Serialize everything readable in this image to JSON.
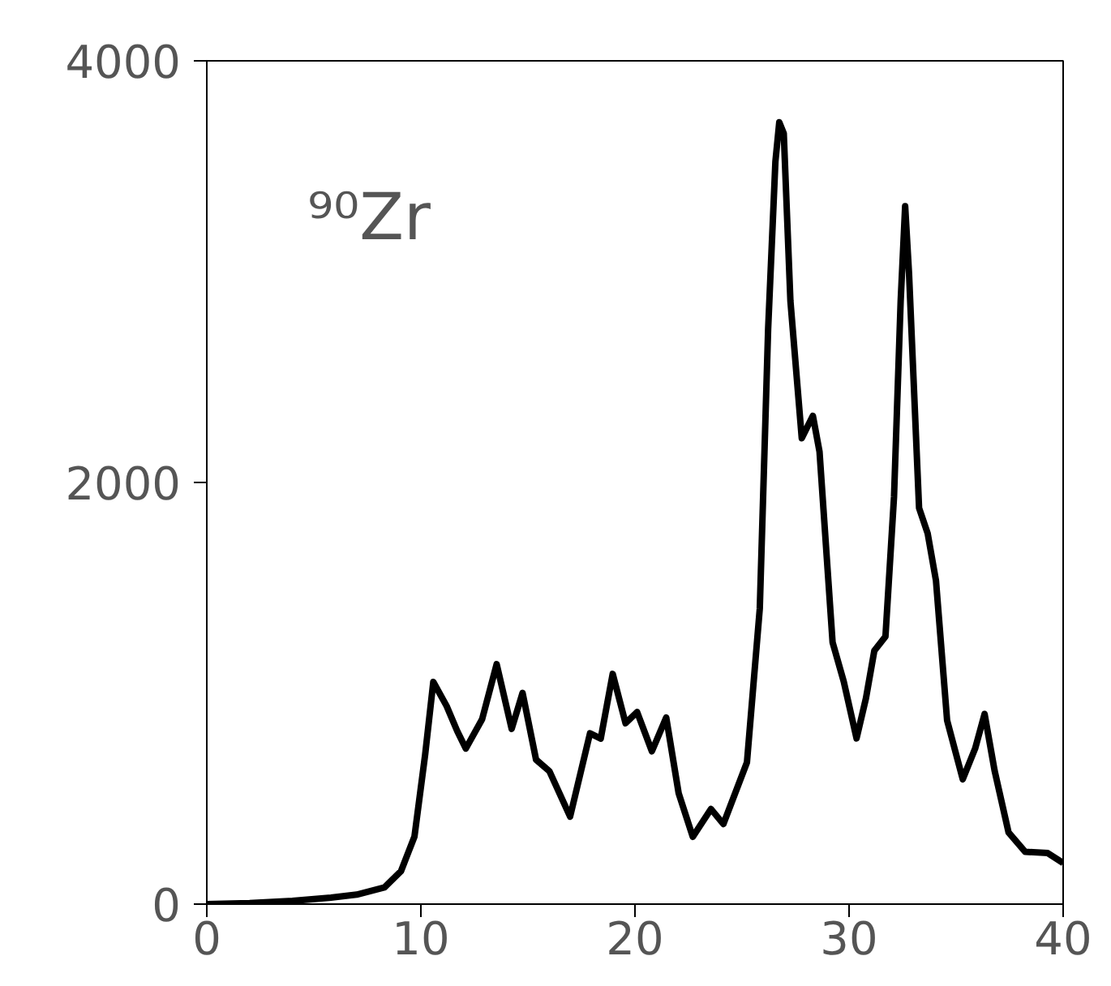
{
  "chart_data": {
    "type": "line",
    "annotations": [
      "⁹⁰Zr"
    ],
    "x": [
      0,
      2,
      4,
      5.8,
      7,
      8.3,
      9.07,
      9.7,
      10.2,
      10.58,
      11.2,
      11.7,
      12.1,
      12.86,
      13.54,
      14.24,
      14.75,
      15.38,
      16.0,
      16.97,
      17.9,
      18.4,
      18.96,
      19.56,
      20.1,
      20.79,
      21.46,
      22.04,
      22.7,
      23.55,
      24.13,
      25.23,
      25.83,
      26.22,
      26.56,
      26.74,
      26.95,
      27.26,
      27.79,
      28.31,
      28.62,
      29.23,
      29.75,
      30.35,
      30.79,
      31.18,
      31.7,
      32.1,
      32.41,
      32.62,
      32.8,
      33.27,
      33.67,
      34.06,
      34.58,
      35.31,
      35.89,
      36.33,
      36.8,
      37.45,
      38.23,
      39.28,
      40
    ],
    "series": [
      {
        "color": "#000000",
        "values": [
          0,
          5,
          15,
          31,
          45,
          79,
          156,
          320,
          710,
          1054,
          940,
          820,
          738,
          877,
          1138,
          831,
          1002,
          685,
          631,
          415,
          810,
          785,
          1092,
          858,
          911,
          725,
          885,
          526,
          319,
          451,
          380,
          672,
          1402,
          2728,
          3523,
          3709,
          3656,
          2862,
          2210,
          2316,
          2146,
          1242,
          1056,
          786,
          977,
          1202,
          1269,
          1932,
          2860,
          3311,
          2993,
          1879,
          1759,
          1534,
          871,
          592,
          738,
          902,
          632,
          340,
          248,
          242,
          195
        ]
      }
    ],
    "xlim": [
      0,
      40
    ],
    "ylim": [
      0,
      4000
    ],
    "xticks": [
      0,
      10,
      20,
      30,
      40
    ],
    "yticks": [
      0,
      2000,
      4000
    ],
    "grid": false,
    "line_style": "solid",
    "marker": "none"
  }
}
